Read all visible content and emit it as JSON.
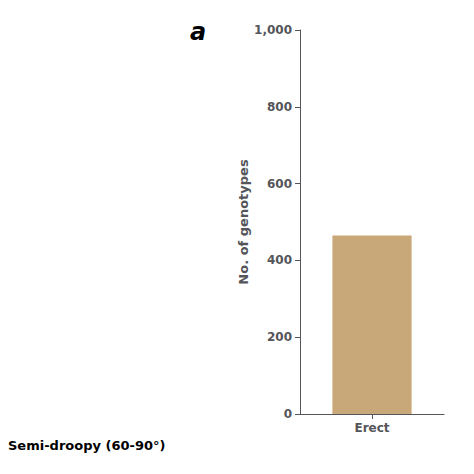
{
  "chart_data": {
    "type": "bar",
    "categories": [
      "Erect"
    ],
    "values": [
      465
    ],
    "color": "#c8a878",
    "ylim": [
      0,
      1000
    ],
    "yticks": [
      0,
      200,
      400,
      600,
      800,
      1000
    ],
    "ylabel": "No. of genotypes",
    "grid": false,
    "annotations": [
      "a",
      "Semi-droopy (60-90°)"
    ]
  }
}
